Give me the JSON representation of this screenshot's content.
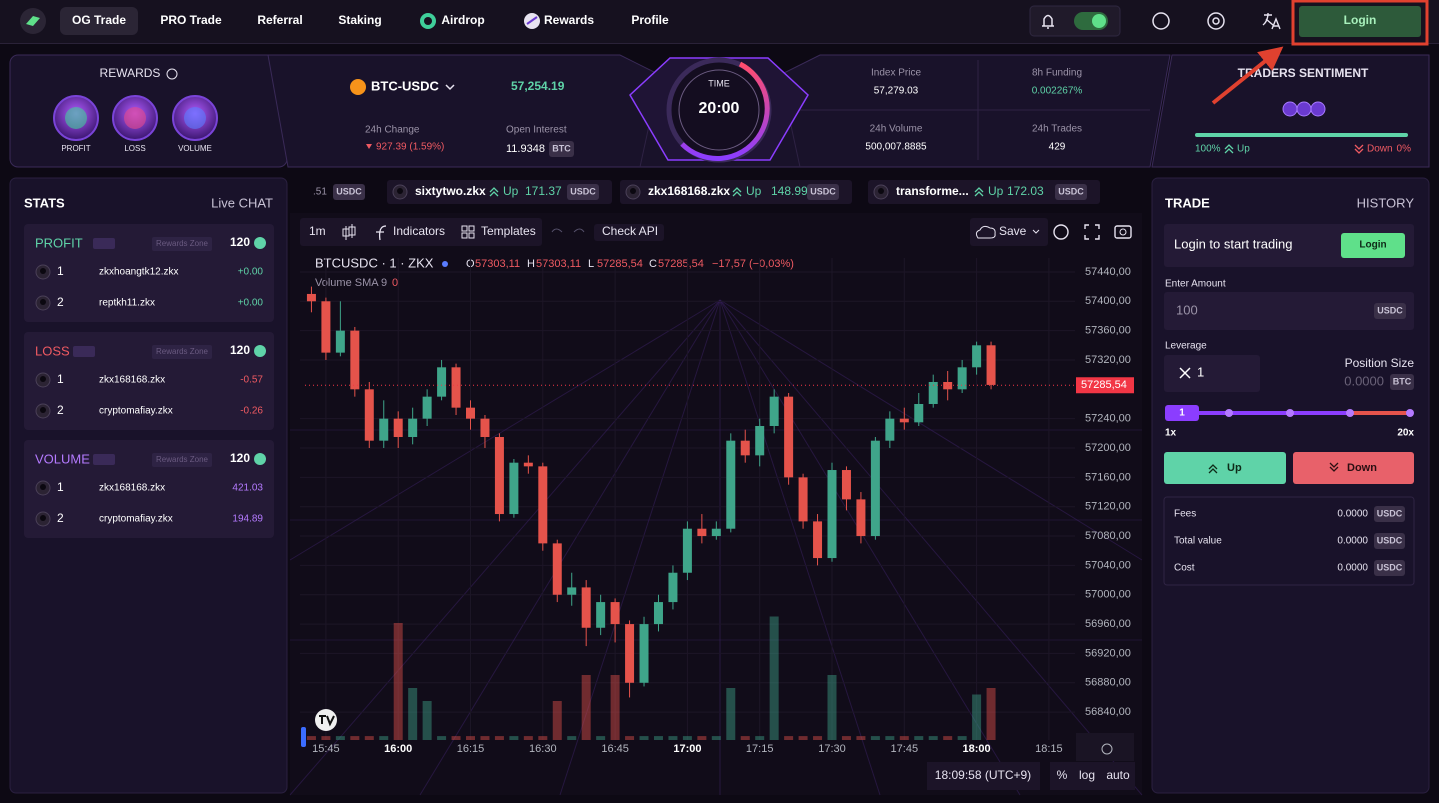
{
  "nav": {
    "items": [
      "OG Trade",
      "PRO Trade",
      "Referral",
      "Staking",
      "Airdrop",
      "Rewards",
      "Profile"
    ],
    "login": "Login"
  },
  "rewards": {
    "title": "REWARDS",
    "badges": [
      "PROFIT",
      "LOSS",
      "VOLUME"
    ]
  },
  "market": {
    "pair": "BTC-USDC",
    "price": "57,254.19",
    "change_label": "24h Change",
    "change": "927.39 (1.59%)",
    "oi_label": "Open Interest",
    "oi": "11.9348",
    "oi_unit": "BTC"
  },
  "timer": {
    "label": "TIME",
    "value": "20:00"
  },
  "stats": [
    {
      "label": "Index Price",
      "value": "57,279.03"
    },
    {
      "label": "8h Funding",
      "value": "0.002267%"
    },
    {
      "label": "24h Volume",
      "value": "500,007.8885"
    },
    {
      "label": "24h Trades",
      "value": "429"
    }
  ],
  "sentiment": {
    "title": "TRADERS SENTIMENT",
    "up_pct": "100%",
    "up": "Up",
    "down": "Down",
    "down_pct": "0%"
  },
  "ticker": [
    {
      "amount": ".51",
      "unit": "USDC"
    },
    {
      "name": "sixtytwo.zkx",
      "dir": "Up",
      "amount": "171.37",
      "unit": "USDC"
    },
    {
      "name": "zkx168168.zkx",
      "dir": "Up",
      "amount": "148.99",
      "unit": "USDC"
    },
    {
      "name": "transforme...",
      "dir": "Up",
      "amount": "172.03",
      "unit": "USDC"
    }
  ],
  "leaderboard": {
    "title": "STATS",
    "tab": "Live CHAT",
    "sections": [
      {
        "title": "PROFIT",
        "tag": "Rewards Zone",
        "count": "120",
        "rows": [
          {
            "rank": "1",
            "name": "zkxhoangtk12.zkx",
            "value": "+0.00"
          },
          {
            "rank": "2",
            "name": "reptkh11.zkx",
            "value": "+0.00"
          }
        ]
      },
      {
        "title": "LOSS",
        "tag": "Rewards Zone",
        "count": "120",
        "rows": [
          {
            "rank": "1",
            "name": "zkx168168.zkx",
            "value": "-0.57"
          },
          {
            "rank": "2",
            "name": "cryptomafiay.zkx",
            "value": "-0.26"
          }
        ]
      },
      {
        "title": "VOLUME",
        "tag": "Rewards Zone",
        "count": "120",
        "rows": [
          {
            "rank": "1",
            "name": "zkx168168.zkx",
            "value": "421.03"
          },
          {
            "rank": "2",
            "name": "cryptomafiay.zkx",
            "value": "194.89"
          }
        ]
      }
    ]
  },
  "toolbar": {
    "interval": "1m",
    "indicators": "Indicators",
    "templates": "Templates",
    "api": "Check API",
    "save": "Save"
  },
  "chart": {
    "type": "candlestick",
    "symbol": "BTCUSDC · 1 · ZKX",
    "legend": [
      {
        "key": "O",
        "value": "57303,11"
      },
      {
        "key": "H",
        "value": "57303,11"
      },
      {
        "key": "L",
        "value": "57285,54"
      },
      {
        "key": "C",
        "value": "57285,54"
      }
    ],
    "change": "−17,57 (−0,03%)",
    "volume_label": "Volume SMA 9",
    "volume_value": "0",
    "ylim": [
      56802,
      57459
    ],
    "yticks": [
      {
        "value": 57440,
        "label": "57440,00"
      },
      {
        "value": 57400,
        "label": "57400,00"
      },
      {
        "value": 57360,
        "label": "57360,00"
      },
      {
        "value": 57320,
        "label": "57320,00"
      },
      {
        "value": 57240,
        "label": "57240,00"
      },
      {
        "value": 57200,
        "label": "57200,00"
      },
      {
        "value": 57160,
        "label": "57160,00"
      },
      {
        "value": 57120,
        "label": "57120,00"
      },
      {
        "value": 57080,
        "label": "57080,00"
      },
      {
        "value": 57040,
        "label": "57040,00"
      },
      {
        "value": 57000,
        "label": "57000,00"
      },
      {
        "value": 56960,
        "label": "56960,00"
      },
      {
        "value": 56920,
        "label": "56920,00"
      },
      {
        "value": 56880,
        "label": "56880,00"
      },
      {
        "value": 56840,
        "label": "56840,00"
      }
    ],
    "last_price": {
      "value": 57285.54,
      "label": "57285,54"
    },
    "xlim": [
      941.7,
      1100
    ],
    "xticks": [
      {
        "value": 945,
        "label": "15:45"
      },
      {
        "value": 960,
        "label": "16:00"
      },
      {
        "value": 975,
        "label": "16:15"
      },
      {
        "value": 990,
        "label": "16:30"
      },
      {
        "value": 1005,
        "label": "16:45"
      },
      {
        "value": 1020,
        "label": "17:00"
      },
      {
        "value": 1035,
        "label": "17:15"
      },
      {
        "value": 1050,
        "label": "17:30"
      },
      {
        "value": 1065,
        "label": "17:45"
      },
      {
        "value": 1080,
        "label": "18:00"
      },
      {
        "value": 1095,
        "label": "18:15"
      }
    ],
    "vlim": [
      0,
      10
    ],
    "colors": {
      "up": "#3fa58a",
      "down": "#e5534b"
    },
    "candles": [
      {
        "t": 942,
        "o": 57410,
        "h": 57420,
        "l": 57385,
        "c": 57400,
        "v": 0.3
      },
      {
        "t": 945,
        "o": 57400,
        "h": 57405,
        "l": 57320,
        "c": 57330,
        "v": 0.3
      },
      {
        "t": 948,
        "o": 57330,
        "h": 57400,
        "l": 57325,
        "c": 57360,
        "v": 0.3
      },
      {
        "t": 951,
        "o": 57360,
        "h": 57365,
        "l": 57270,
        "c": 57280,
        "v": 0.3
      },
      {
        "t": 954,
        "o": 57280,
        "h": 57290,
        "l": 57200,
        "c": 57210,
        "v": 0.3
      },
      {
        "t": 957,
        "o": 57210,
        "h": 57265,
        "l": 57200,
        "c": 57240,
        "v": 0.3
      },
      {
        "t": 960,
        "o": 57240,
        "h": 57250,
        "l": 57200,
        "c": 57215,
        "v": 9
      },
      {
        "t": 963,
        "o": 57215,
        "h": 57255,
        "l": 57205,
        "c": 57240,
        "v": 4
      },
      {
        "t": 966,
        "o": 57240,
        "h": 57280,
        "l": 57230,
        "c": 57270,
        "v": 3
      },
      {
        "t": 969,
        "o": 57270,
        "h": 57320,
        "l": 57265,
        "c": 57310,
        "v": 0.3
      },
      {
        "t": 972,
        "o": 57310,
        "h": 57315,
        "l": 57245,
        "c": 57255,
        "v": 0.3
      },
      {
        "t": 975,
        "o": 57255,
        "h": 57265,
        "l": 57225,
        "c": 57240,
        "v": 0.3
      },
      {
        "t": 978,
        "o": 57240,
        "h": 57245,
        "l": 57200,
        "c": 57215,
        "v": 0.3
      },
      {
        "t": 981,
        "o": 57215,
        "h": 57220,
        "l": 57100,
        "c": 57110,
        "v": 0.3
      },
      {
        "t": 984,
        "o": 57110,
        "h": 57185,
        "l": 57105,
        "c": 57180,
        "v": 0.3
      },
      {
        "t": 987,
        "o": 57180,
        "h": 57190,
        "l": 57165,
        "c": 57175,
        "v": 0.3
      },
      {
        "t": 990,
        "o": 57175,
        "h": 57180,
        "l": 57060,
        "c": 57070,
        "v": 0.3
      },
      {
        "t": 993,
        "o": 57070,
        "h": 57075,
        "l": 56990,
        "c": 57000,
        "v": 3
      },
      {
        "t": 996,
        "o": 57000,
        "h": 57030,
        "l": 56985,
        "c": 57010,
        "v": 0.3
      },
      {
        "t": 999,
        "o": 57010,
        "h": 57020,
        "l": 56930,
        "c": 56955,
        "v": 5
      },
      {
        "t": 1002,
        "o": 56955,
        "h": 57000,
        "l": 56945,
        "c": 56990,
        "v": 0.3
      },
      {
        "t": 1005,
        "o": 56990,
        "h": 56995,
        "l": 56935,
        "c": 56960,
        "v": 5
      },
      {
        "t": 1008,
        "o": 56960,
        "h": 56965,
        "l": 56860,
        "c": 56880,
        "v": 0.3
      },
      {
        "t": 1011,
        "o": 56880,
        "h": 56970,
        "l": 56875,
        "c": 56960,
        "v": 0.3
      },
      {
        "t": 1014,
        "o": 56960,
        "h": 57000,
        "l": 56950,
        "c": 56990,
        "v": 0.3
      },
      {
        "t": 1017,
        "o": 56990,
        "h": 57040,
        "l": 56980,
        "c": 57030,
        "v": 0.3
      },
      {
        "t": 1020,
        "o": 57030,
        "h": 57100,
        "l": 57020,
        "c": 57090,
        "v": 0.3
      },
      {
        "t": 1023,
        "o": 57090,
        "h": 57110,
        "l": 57070,
        "c": 57080,
        "v": 0.3
      },
      {
        "t": 1026,
        "o": 57080,
        "h": 57100,
        "l": 57075,
        "c": 57090,
        "v": 0.3
      },
      {
        "t": 1029,
        "o": 57090,
        "h": 57220,
        "l": 57085,
        "c": 57210,
        "v": 4
      },
      {
        "t": 1032,
        "o": 57210,
        "h": 57225,
        "l": 57180,
        "c": 57190,
        "v": 0.3
      },
      {
        "t": 1035,
        "o": 57190,
        "h": 57240,
        "l": 57175,
        "c": 57230,
        "v": 0.3
      },
      {
        "t": 1038,
        "o": 57230,
        "h": 57280,
        "l": 57220,
        "c": 57270,
        "v": 9.5
      },
      {
        "t": 1041,
        "o": 57270,
        "h": 57275,
        "l": 57150,
        "c": 57160,
        "v": 0.3
      },
      {
        "t": 1044,
        "o": 57160,
        "h": 57165,
        "l": 57090,
        "c": 57100,
        "v": 0.3
      },
      {
        "t": 1047,
        "o": 57100,
        "h": 57110,
        "l": 57040,
        "c": 57050,
        "v": 0.3
      },
      {
        "t": 1050,
        "o": 57050,
        "h": 57180,
        "l": 57045,
        "c": 57170,
        "v": 5
      },
      {
        "t": 1053,
        "o": 57170,
        "h": 57175,
        "l": 57115,
        "c": 57130,
        "v": 0.3
      },
      {
        "t": 1056,
        "o": 57130,
        "h": 57140,
        "l": 57070,
        "c": 57080,
        "v": 0.3
      },
      {
        "t": 1059,
        "o": 57080,
        "h": 57215,
        "l": 57075,
        "c": 57210,
        "v": 0.3
      },
      {
        "t": 1062,
        "o": 57210,
        "h": 57250,
        "l": 57200,
        "c": 57240,
        "v": 0.3
      },
      {
        "t": 1065,
        "o": 57240,
        "h": 57255,
        "l": 57225,
        "c": 57235,
        "v": 0.3
      },
      {
        "t": 1068,
        "o": 57235,
        "h": 57275,
        "l": 57230,
        "c": 57260,
        "v": 0.3
      },
      {
        "t": 1071,
        "o": 57260,
        "h": 57300,
        "l": 57255,
        "c": 57290,
        "v": 0.3
      },
      {
        "t": 1074,
        "o": 57290,
        "h": 57305,
        "l": 57265,
        "c": 57280,
        "v": 0.3
      },
      {
        "t": 1077,
        "o": 57280,
        "h": 57320,
        "l": 57275,
        "c": 57310,
        "v": 0.3
      },
      {
        "t": 1080,
        "o": 57310,
        "h": 57345,
        "l": 57300,
        "c": 57340,
        "v": 3.5
      },
      {
        "t": 1083,
        "o": 57340,
        "h": 57345,
        "l": 57280,
        "c": 57286,
        "v": 4
      }
    ],
    "time": "18:09:58 (UTC+9)",
    "scale_buttons": [
      "%",
      "log",
      "auto"
    ]
  },
  "trade": {
    "title": "TRADE",
    "tab": "HISTORY",
    "login_prompt": "Login to start trading",
    "login": "Login",
    "amount_label": "Enter Amount",
    "amount_placeholder": "100",
    "amount_unit": "USDC",
    "leverage_label": "Leverage",
    "leverage": "1",
    "position_label": "Position Size",
    "position": "0.0000",
    "position_unit": "BTC",
    "slider_value": "1",
    "slider_min": "1x",
    "slider_max": "20x",
    "up": "Up",
    "down": "Down",
    "fees": [
      {
        "label": "Fees",
        "value": "0.0000",
        "unit": "USDC"
      },
      {
        "label": "Total value",
        "value": "0.0000",
        "unit": "USDC"
      },
      {
        "label": "Cost",
        "value": "0.0000",
        "unit": "USDC"
      }
    ]
  }
}
